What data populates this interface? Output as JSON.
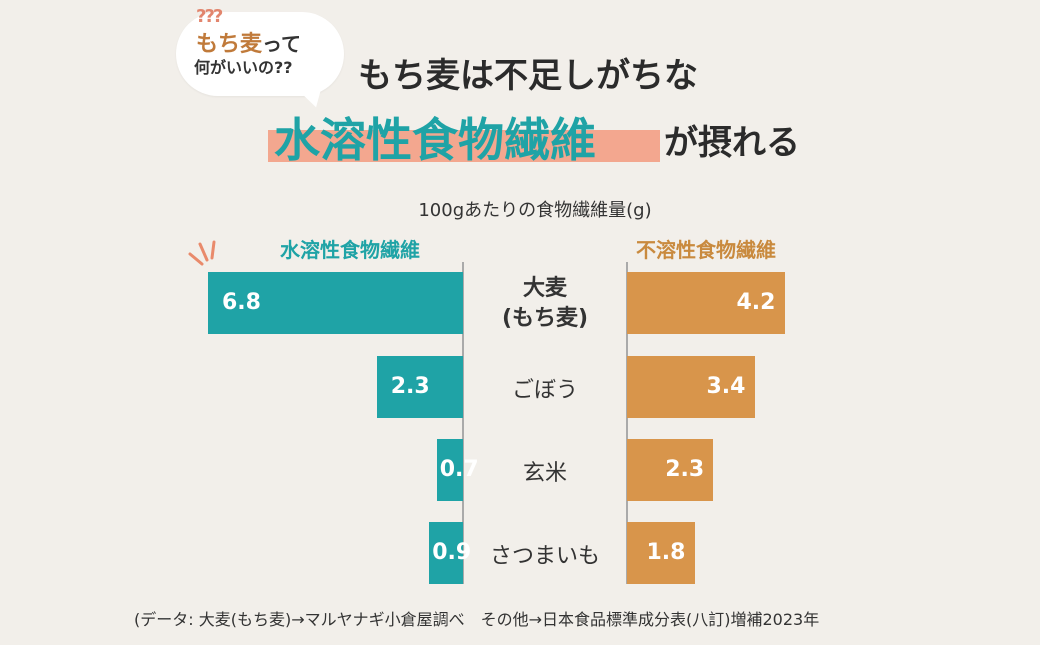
{
  "bubble": {
    "question_marks": "???",
    "line1_highlight": "もち麦",
    "line1_rest": "って",
    "line2": "何がいいの??"
  },
  "headline": {
    "line1": "もち麦は不足しがちな",
    "line2_highlight": "水溶性食物繊維",
    "line2_rest": "が摂れる"
  },
  "colors": {
    "soluble": "#1fa3a6",
    "insoluble": "#d8954b",
    "highlight": "#f3a78f"
  },
  "chart_data": {
    "type": "bar",
    "title": "100gあたりの食物繊維量(g)",
    "categories": [
      "大麦\n(もち麦)",
      "ごぼう",
      "玄米",
      "さつまいも"
    ],
    "series": [
      {
        "name": "水溶性食物繊維",
        "values": [
          6.8,
          2.3,
          0.7,
          0.9
        ]
      },
      {
        "name": "不溶性食物繊維",
        "values": [
          4.2,
          3.4,
          2.3,
          1.8
        ]
      }
    ]
  },
  "source": "(データ: 大麦(もち麦)→マルヤナギ小倉屋調べ　その他→日本食品標準成分表(八訂)増補2023年"
}
